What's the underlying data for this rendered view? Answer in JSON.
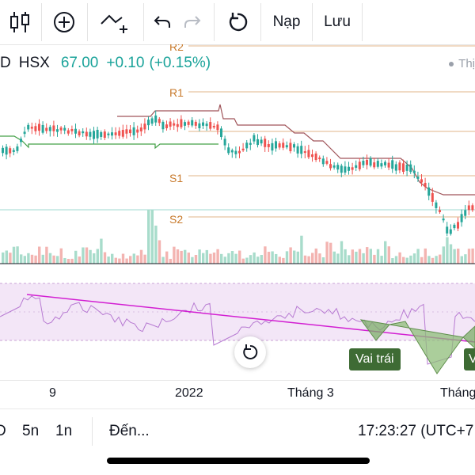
{
  "toolbar": {
    "icons": [
      "candlestick-icon",
      "add-indicator-icon",
      "compare-icon",
      "undo-icon",
      "redo-icon",
      "reset-icon"
    ],
    "load_label": "Nạp",
    "save_label": "Lưu"
  },
  "symbol": {
    "name_partial": "D",
    "exchange": "HSX",
    "price": "67.00",
    "change": "+0.10",
    "change_pct": "(+0.15%)",
    "market_status_partial": "Thị"
  },
  "pivots": {
    "r2": "R2",
    "r1": "R1",
    "s1": "S1",
    "s2": "S2"
  },
  "pattern": {
    "left_shoulder": "Vai trái",
    "right_shoulder_partial": "V"
  },
  "time_axis": {
    "labels": [
      "9",
      "2022",
      "Tháng 3",
      "Tháng"
    ]
  },
  "bottom_bar": {
    "interval_partial": "D",
    "interval_5n": "5n",
    "interval_1n": "1n",
    "goto_label": "Đến...",
    "clock": "17:23:27 (UTC+7"
  },
  "colors": {
    "up": "#26a69a",
    "down": "#ef5350",
    "pivot": "#c87a2c",
    "rsi": "#b77ad2",
    "trend_line": "#d21fd2",
    "pattern_fill": "#6aa84f"
  }
}
